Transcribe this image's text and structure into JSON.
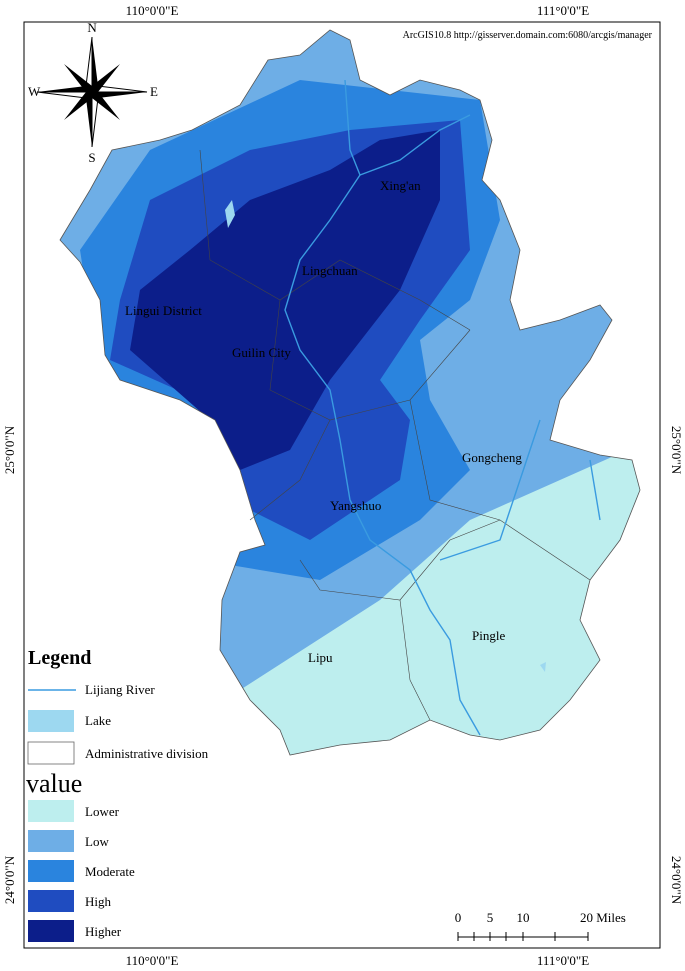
{
  "header": {
    "credit": "ArcGIS10.8 http://gisserver.domain.com:6080/arcgis/manager"
  },
  "graticule": {
    "top": [
      "110°0'0\"E",
      "111°0'0\"E"
    ],
    "bottom": [
      "110°0'0\"E",
      "111°0'0\"E"
    ],
    "left": [
      "25°0'0\"N",
      "24°0'0\"N"
    ],
    "right": [
      "25°0'0\"N",
      "24°0'0\"N"
    ]
  },
  "compass": {
    "north": "N",
    "south": "S",
    "east": "E",
    "west": "W"
  },
  "places": [
    {
      "label": "Xing'an"
    },
    {
      "label": "Lingchuan"
    },
    {
      "label": "Lingui District"
    },
    {
      "label": "Guilin City"
    },
    {
      "label": "Gongcheng"
    },
    {
      "label": "Yangshuo"
    },
    {
      "label": "Pingle"
    },
    {
      "label": "Lipu"
    }
  ],
  "legend": {
    "title": "Legend",
    "items": [
      {
        "label": "Lijiang River",
        "color": "#3a9be0"
      },
      {
        "label": "Lake",
        "color": "#9dd8f0"
      },
      {
        "label": "Administrative division",
        "color": "#666666"
      }
    ],
    "value_title": "value",
    "classes": [
      {
        "label": "Lower",
        "color": "#bdeeee"
      },
      {
        "label": "Low",
        "color": "#6eaee6"
      },
      {
        "label": "Moderate",
        "color": "#2a84de"
      },
      {
        "label": "High",
        "color": "#1f4cc0"
      },
      {
        "label": "Higher",
        "color": "#0c1e8a"
      }
    ]
  },
  "scale_bar": {
    "labels": [
      "0",
      "5",
      "10",
      "20 Miles"
    ]
  }
}
